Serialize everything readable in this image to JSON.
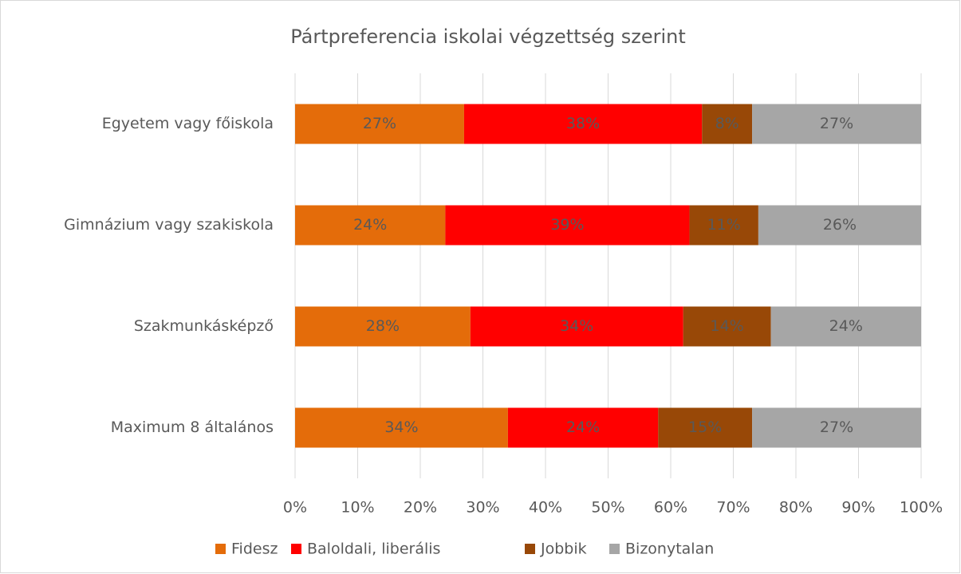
{
  "chart_data": {
    "type": "stacked-bar-horizontal",
    "title": "Pártpreferencia iskolai végzettség szerint",
    "categories": [
      "Egyetem vagy főiskola",
      "Gimnázium vagy szakiskola",
      "Szakmunkásképző",
      "Maximum 8 általános"
    ],
    "series": [
      {
        "name": "Fidesz",
        "color": "#E46C0A",
        "values": [
          27,
          24,
          28,
          34
        ],
        "value_labels": [
          "27%",
          "24%",
          "28%",
          "34%"
        ]
      },
      {
        "name": "Baloldali, liberális",
        "color": "#FF0000",
        "values": [
          38,
          39,
          34,
          24
        ],
        "value_labels": [
          "38%",
          "39%",
          "34%",
          "24%"
        ]
      },
      {
        "name": "Jobbik",
        "color": "#984807",
        "values": [
          8,
          11,
          14,
          15
        ],
        "value_labels": [
          "8%",
          "11%",
          "14%",
          "15%"
        ]
      },
      {
        "name": "Bizonytalan",
        "color": "#A6A6A6",
        "values": [
          27,
          26,
          24,
          27
        ],
        "value_labels": [
          "27%",
          "26%",
          "24%",
          "27%"
        ]
      }
    ],
    "xlim": [
      0,
      100
    ],
    "xticks": [
      {
        "value": 0,
        "label": "0%"
      },
      {
        "value": 10,
        "label": "10%"
      },
      {
        "value": 20,
        "label": "20%"
      },
      {
        "value": 30,
        "label": "30%"
      },
      {
        "value": 40,
        "label": "40%"
      },
      {
        "value": 50,
        "label": "50%"
      },
      {
        "value": 60,
        "label": "60%"
      },
      {
        "value": 70,
        "label": "70%"
      },
      {
        "value": 80,
        "label": "80%"
      },
      {
        "value": 90,
        "label": "90%"
      },
      {
        "value": 100,
        "label": "100%"
      }
    ],
    "grid": true,
    "legend": "bottom"
  }
}
